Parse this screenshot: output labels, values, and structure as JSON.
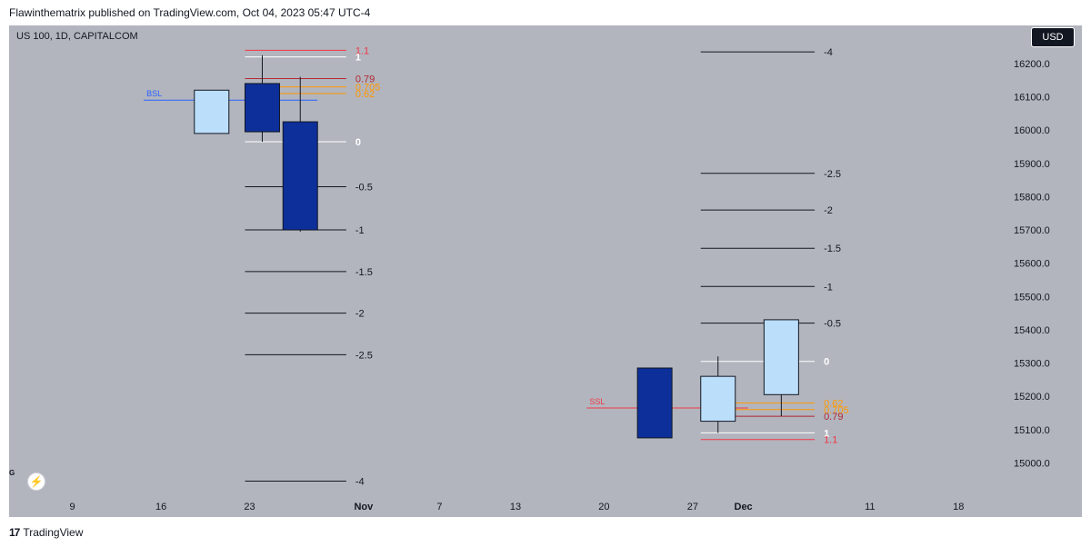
{
  "header": {
    "publisher_text": "Flawinthematrix published on TradingView.com, Oct 04, 2023 05:47 UTC-4"
  },
  "toolbar": {
    "symbol": "US 100, 1D, CAPITALCOM",
    "currency": "USD",
    "g_label": "G",
    "bolt_icon": "lightning-icon"
  },
  "footer": {
    "logo_mark": "17",
    "logo_text": "TradingView"
  },
  "colors": {
    "background": "#b2b5be",
    "bear_fill": "#0c2f9a",
    "bull_fill": "#bbdefb",
    "candle_border": "#131722",
    "level_line": "#131722",
    "level_white": "#ffffff",
    "level_red": "#f23645",
    "level_orange": "#ff9800",
    "level_darkred": "#b22833",
    "bsl_color": "#2962ff",
    "ssl_color": "#f23645"
  },
  "chart_data": {
    "type": "candlestick",
    "y_axis": {
      "min": 14930,
      "max": 16260,
      "ticks": [
        15000,
        15100,
        15200,
        15300,
        15400,
        15500,
        15600,
        15700,
        15800,
        15900,
        16000,
        16100,
        16200
      ],
      "tick_labels": [
        "15000.0",
        "15100.0",
        "15200.0",
        "15300.0",
        "15400.0",
        "15500.0",
        "15600.0",
        "15700.0",
        "15800.0",
        "15900.0",
        "16000.0",
        "16100.0",
        "16200.0"
      ]
    },
    "x_axis": {
      "start": "2023-10-04",
      "end": "2023-12-22",
      "tick_labels": [
        {
          "date": "2023-10-09",
          "label": "9",
          "bold": false
        },
        {
          "date": "2023-10-16",
          "label": "16",
          "bold": false
        },
        {
          "date": "2023-10-23",
          "label": "23",
          "bold": false
        },
        {
          "date": "2023-11-01",
          "label": "Nov",
          "bold": true
        },
        {
          "date": "2023-11-07",
          "label": "7",
          "bold": false
        },
        {
          "date": "2023-11-13",
          "label": "13",
          "bold": false
        },
        {
          "date": "2023-11-20",
          "label": "20",
          "bold": false
        },
        {
          "date": "2023-11-27",
          "label": "27",
          "bold": false
        },
        {
          "date": "2023-12-01",
          "label": "Dec",
          "bold": true
        },
        {
          "date": "2023-12-11",
          "label": "11",
          "bold": false
        },
        {
          "date": "2023-12-18",
          "label": "18",
          "bold": false
        }
      ]
    },
    "candles": [
      {
        "date": "2023-10-20",
        "open": 15990,
        "high": 16120,
        "low": 15990,
        "close": 16120
      },
      {
        "date": "2023-10-24",
        "open": 16140,
        "high": 16225,
        "low": 15965,
        "close": 15995
      },
      {
        "date": "2023-10-27",
        "open": 16025,
        "high": 16160,
        "low": 15695,
        "close": 15700
      },
      {
        "date": "2023-11-24",
        "open": 15285,
        "high": 15285,
        "low": 15075,
        "close": 15075
      },
      {
        "date": "2023-11-29",
        "open": 15125,
        "high": 15320,
        "low": 15090,
        "close": 15260
      },
      {
        "date": "2023-12-04",
        "open": 15205,
        "high": 15430,
        "low": 15140,
        "close": 15430
      }
    ],
    "fib_sets": [
      {
        "x_start": "2023-10-24",
        "x_end": "2023-11-01",
        "levels": [
          {
            "label": "1.1",
            "price": 16240,
            "color": "#f23645"
          },
          {
            "label": "1",
            "price": 16220,
            "color": "#ffffff"
          },
          {
            "label": "0.79",
            "price": 16155,
            "color": "#b22833"
          },
          {
            "label": "0.705",
            "price": 16130,
            "color": "#ff9800"
          },
          {
            "label": "0.62",
            "price": 16110,
            "color": "#ff9800"
          },
          {
            "label": "0",
            "price": 15965,
            "color": "#ffffff"
          },
          {
            "label": "-0.5",
            "price": 15830,
            "color": "#131722"
          },
          {
            "label": "-1",
            "price": 15700,
            "color": "#131722"
          },
          {
            "label": "-1.5",
            "price": 15575,
            "color": "#131722"
          },
          {
            "label": "-2",
            "price": 15450,
            "color": "#131722"
          },
          {
            "label": "-2.5",
            "price": 15325,
            "color": "#131722"
          },
          {
            "label": "-4",
            "price": 14945,
            "color": "#131722"
          }
        ]
      },
      {
        "x_start": "2023-11-29",
        "x_end": "2023-12-08",
        "levels": [
          {
            "label": "-4",
            "price": 16235,
            "color": "#131722"
          },
          {
            "label": "-2.5",
            "price": 15870,
            "color": "#131722"
          },
          {
            "label": "-2",
            "price": 15760,
            "color": "#131722"
          },
          {
            "label": "-1.5",
            "price": 15645,
            "color": "#131722"
          },
          {
            "label": "-1",
            "price": 15530,
            "color": "#131722"
          },
          {
            "label": "-0.5",
            "price": 15420,
            "color": "#131722"
          },
          {
            "label": "0",
            "price": 15305,
            "color": "#ffffff"
          },
          {
            "label": "0.62",
            "price": 15180,
            "color": "#ff9800"
          },
          {
            "label": "0.705",
            "price": 15160,
            "color": "#ff9800"
          },
          {
            "label": "0.79",
            "price": 15140,
            "color": "#b22833"
          },
          {
            "label": "1",
            "price": 15090,
            "color": "#ffffff"
          },
          {
            "label": "1.1",
            "price": 15070,
            "color": "#f23645"
          }
        ]
      }
    ],
    "liquidity_lines": [
      {
        "label": "BSL",
        "price": 16090,
        "x_start": "2023-10-16",
        "x_end": "2023-10-27",
        "color": "#2962ff"
      },
      {
        "label": "SSL",
        "price": 15165,
        "x_start": "2023-11-20",
        "x_end": "2023-11-30",
        "color": "#f23645"
      }
    ],
    "grid": false,
    "legend": "none"
  }
}
